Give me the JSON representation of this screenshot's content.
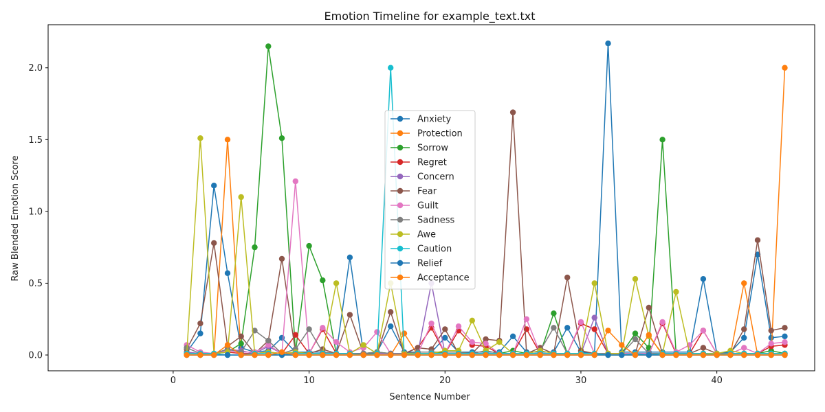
{
  "chart_data": {
    "type": "line",
    "title": "Emotion Timeline for example_text.txt",
    "xlabel": "Sentence Number",
    "ylabel": "Raw Blended Emotion Score",
    "xlim": [
      -9.2,
      47.2
    ],
    "ylim": [
      -0.11,
      2.3
    ],
    "xticks": [
      0,
      10,
      20,
      30,
      40
    ],
    "yticks": [
      0.0,
      0.5,
      1.0,
      1.5,
      2.0
    ],
    "ytick_labels": [
      "0.0",
      "0.5",
      "1.0",
      "1.5",
      "2.0"
    ],
    "grid": false,
    "legend_position": "center",
    "x": [
      1,
      2,
      3,
      4,
      5,
      6,
      7,
      8,
      9,
      10,
      11,
      12,
      13,
      14,
      15,
      16,
      17,
      18,
      19,
      20,
      21,
      22,
      23,
      24,
      25,
      26,
      27,
      28,
      29,
      30,
      31,
      32,
      33,
      34,
      35,
      36,
      37,
      38,
      39,
      40,
      41,
      42,
      43,
      44,
      45
    ],
    "series": [
      {
        "name": "Anxiety",
        "color": "#1f77b4",
        "values": [
          0.02,
          0.15,
          1.18,
          0.57,
          0.05,
          0.02,
          0.03,
          0.12,
          0.02,
          0.02,
          0.02,
          0.01,
          0.68,
          0.01,
          0.02,
          0.2,
          0.02,
          0.02,
          0.02,
          0.12,
          0.02,
          0.02,
          0.02,
          0.02,
          0.13,
          0.02,
          0.02,
          0.02,
          0.19,
          0.02,
          0.01,
          2.17,
          0.02,
          0.02,
          0.02,
          0.02,
          0.02,
          0.02,
          0.53,
          0.01,
          0.02,
          0.12,
          0.7,
          0.12,
          0.13
        ]
      },
      {
        "name": "Protection",
        "color": "#ff7f0e",
        "values": [
          0.0,
          0.0,
          0.0,
          1.5,
          0.0,
          0.0,
          0.0,
          0.0,
          0.0,
          0.0,
          0.0,
          0.0,
          0.0,
          0.0,
          0.0,
          0.0,
          0.15,
          0.0,
          0.0,
          0.0,
          0.0,
          0.0,
          0.0,
          0.0,
          0.0,
          0.0,
          0.0,
          0.0,
          0.0,
          0.0,
          0.0,
          0.0,
          0.0,
          0.0,
          0.0,
          0.0,
          0.0,
          0.0,
          0.0,
          0.0,
          0.0,
          0.5,
          0.0,
          0.0,
          2.0
        ]
      },
      {
        "name": "Sorrow",
        "color": "#2ca02c",
        "values": [
          0.01,
          0.01,
          0.01,
          0.02,
          0.08,
          0.75,
          2.15,
          1.51,
          0.02,
          0.76,
          0.52,
          0.01,
          0.01,
          0.01,
          0.02,
          0.01,
          0.01,
          0.01,
          0.01,
          0.02,
          0.02,
          0.01,
          0.01,
          0.01,
          0.03,
          0.01,
          0.01,
          0.29,
          0.01,
          0.01,
          0.01,
          0.01,
          0.01,
          0.15,
          0.05,
          1.5,
          0.01,
          0.01,
          0.01,
          0.01,
          0.01,
          0.01,
          0.01,
          0.03,
          0.01
        ]
      },
      {
        "name": "Regret",
        "color": "#d62728",
        "values": [
          0.01,
          0.01,
          0.01,
          0.02,
          0.01,
          0.01,
          0.02,
          0.01,
          0.14,
          0.01,
          0.18,
          0.01,
          0.01,
          0.01,
          0.01,
          0.01,
          0.01,
          0.05,
          0.19,
          0.01,
          0.17,
          0.07,
          0.06,
          0.01,
          0.01,
          0.18,
          0.01,
          0.01,
          0.01,
          0.22,
          0.18,
          0.01,
          0.01,
          0.01,
          0.01,
          0.22,
          0.01,
          0.01,
          0.17,
          0.01,
          0.01,
          0.01,
          0.01,
          0.06,
          0.07
        ]
      },
      {
        "name": "Concern",
        "color": "#9467bd",
        "values": [
          0.02,
          0.01,
          0.01,
          0.04,
          0.03,
          0.01,
          0.06,
          0.01,
          0.01,
          0.01,
          0.01,
          0.01,
          0.01,
          0.01,
          0.01,
          0.01,
          0.01,
          0.01,
          0.5,
          0.01,
          0.01,
          0.01,
          0.01,
          0.01,
          0.01,
          0.01,
          0.01,
          0.01,
          0.01,
          0.01,
          0.26,
          0.01,
          0.01,
          0.01,
          0.01,
          0.01,
          0.01,
          0.01,
          0.01,
          0.01,
          0.01,
          0.01,
          0.01,
          0.01,
          0.01
        ]
      },
      {
        "name": "Fear",
        "color": "#8c564b",
        "values": [
          0.04,
          0.22,
          0.78,
          0.06,
          0.13,
          0.01,
          0.1,
          0.67,
          0.02,
          0.01,
          0.04,
          0.01,
          0.28,
          0.01,
          0.01,
          0.3,
          0.01,
          0.05,
          0.04,
          0.18,
          0.01,
          0.01,
          0.11,
          0.1,
          1.69,
          0.01,
          0.05,
          0.01,
          0.54,
          0.03,
          0.01,
          0.01,
          0.01,
          0.01,
          0.33,
          0.01,
          0.01,
          0.01,
          0.05,
          0.01,
          0.01,
          0.18,
          0.8,
          0.17,
          0.19
        ]
      },
      {
        "name": "Guilt",
        "color": "#e377c2",
        "values": [
          0.07,
          0.02,
          0.01,
          0.03,
          0.02,
          0.02,
          0.07,
          0.01,
          1.21,
          0.01,
          0.19,
          0.09,
          0.02,
          0.05,
          0.16,
          0.01,
          0.01,
          0.01,
          0.22,
          0.01,
          0.2,
          0.09,
          0.08,
          0.01,
          0.01,
          0.25,
          0.01,
          0.01,
          0.01,
          0.23,
          0.01,
          0.01,
          0.01,
          0.01,
          0.01,
          0.23,
          0.02,
          0.07,
          0.17,
          0.01,
          0.01,
          0.05,
          0.01,
          0.08,
          0.09
        ]
      },
      {
        "name": "Sadness",
        "color": "#7f7f7f",
        "values": [
          0.05,
          0.01,
          0.01,
          0.04,
          0.02,
          0.17,
          0.1,
          0.01,
          0.04,
          0.18,
          0.02,
          0.01,
          0.01,
          0.01,
          0.02,
          0.01,
          0.01,
          0.02,
          0.02,
          0.02,
          0.02,
          0.01,
          0.03,
          0.01,
          0.01,
          0.01,
          0.03,
          0.19,
          0.01,
          0.01,
          0.01,
          0.01,
          0.01,
          0.11,
          0.01,
          0.01,
          0.01,
          0.01,
          0.01,
          0.01,
          0.01,
          0.01,
          0.01,
          0.01,
          0.01
        ]
      },
      {
        "name": "Awe",
        "color": "#bcbd22",
        "values": [
          0.01,
          1.51,
          0.01,
          0.02,
          1.1,
          0.01,
          0.02,
          0.01,
          0.02,
          0.01,
          0.01,
          0.5,
          0.01,
          0.07,
          0.01,
          0.5,
          0.01,
          0.01,
          0.01,
          0.03,
          0.03,
          0.24,
          0.03,
          0.09,
          0.01,
          0.01,
          0.03,
          0.01,
          0.01,
          0.01,
          0.5,
          0.01,
          0.01,
          0.53,
          0.13,
          0.01,
          0.44,
          0.01,
          0.01,
          0.01,
          0.03,
          0.01,
          0.01,
          0.01,
          0.01
        ]
      },
      {
        "name": "Caution",
        "color": "#17becf",
        "values": [
          0.01,
          0.01,
          0.01,
          0.0,
          0.0,
          0.01,
          0.01,
          0.0,
          0.01,
          0.01,
          0.01,
          0.01,
          0.01,
          0.0,
          0.01,
          2.0,
          0.0,
          0.01,
          0.01,
          0.01,
          0.01,
          0.01,
          0.01,
          0.01,
          0.01,
          0.01,
          0.01,
          0.01,
          0.01,
          0.01,
          0.01,
          0.0,
          0.0,
          0.01,
          0.0,
          0.01,
          0.01,
          0.01,
          0.01,
          0.0,
          0.01,
          0.01,
          0.01,
          0.01,
          0.01
        ]
      },
      {
        "name": "Relief",
        "color": "#1f77b4",
        "values": [
          0.0,
          0.0,
          0.0,
          0.0,
          0.0,
          0.0,
          0.0,
          0.0,
          0.0,
          0.0,
          0.0,
          0.0,
          0.0,
          0.0,
          0.0,
          0.0,
          0.0,
          0.0,
          0.0,
          0.0,
          0.0,
          0.0,
          0.0,
          0.0,
          0.0,
          0.0,
          0.0,
          0.0,
          0.0,
          0.0,
          0.0,
          0.0,
          0.0,
          0.0,
          0.0,
          0.0,
          0.0,
          0.0,
          0.0,
          0.0,
          0.0,
          0.0,
          0.0,
          0.0,
          0.0
        ]
      },
      {
        "name": "Acceptance",
        "color": "#ff7f0e",
        "values": [
          0.0,
          0.0,
          0.0,
          0.07,
          0.0,
          0.0,
          0.0,
          0.02,
          0.0,
          0.0,
          0.0,
          0.0,
          0.0,
          0.0,
          0.0,
          0.0,
          0.0,
          0.0,
          0.0,
          0.0,
          0.0,
          0.0,
          0.0,
          0.0,
          0.0,
          0.0,
          0.0,
          0.0,
          0.0,
          0.0,
          0.0,
          0.17,
          0.07,
          0.0,
          0.14,
          0.0,
          0.0,
          0.0,
          0.0,
          0.0,
          0.0,
          0.0,
          0.0,
          0.0,
          0.0
        ]
      }
    ]
  }
}
